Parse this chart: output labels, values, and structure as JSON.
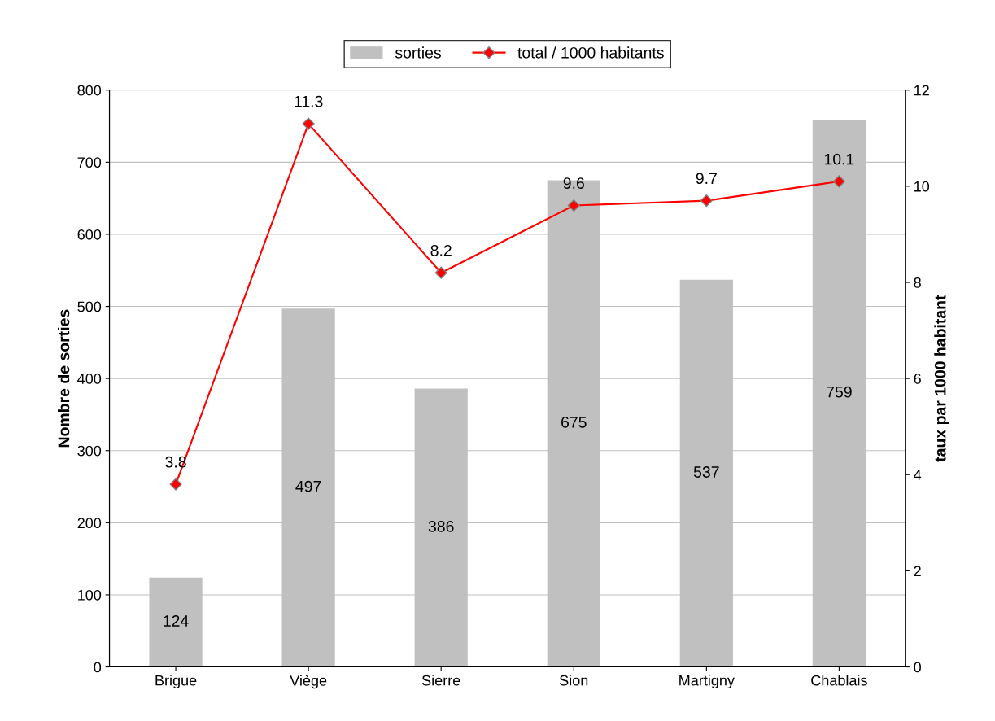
{
  "chart_data": {
    "type": "bar",
    "categories": [
      "Brigue",
      "Viège",
      "Sierre",
      "Sion",
      "Martigny",
      "Chablais"
    ],
    "ylabel": "Nombre de sorties",
    "y2label": "taux par 1000 habitant",
    "series": [
      {
        "name": "sorties",
        "color": "#c0c0c0",
        "values": [
          124,
          497,
          386,
          675,
          537,
          759
        ]
      },
      {
        "name": "total / 1000 habitants",
        "type": "line",
        "axis": "y2",
        "color": "#ff0000",
        "marker": "diamond",
        "values": [
          3.8,
          11.3,
          8.2,
          9.6,
          9.7,
          10.1
        ]
      }
    ],
    "ylim": [
      0,
      800
    ],
    "yticks": [
      0,
      100,
      200,
      300,
      400,
      500,
      600,
      700,
      800
    ],
    "y2lim": [
      0,
      12
    ],
    "y2ticks": [
      0,
      2,
      4,
      6,
      8,
      10,
      12
    ],
    "data_labels": true,
    "grid": "y",
    "legend": "top"
  }
}
